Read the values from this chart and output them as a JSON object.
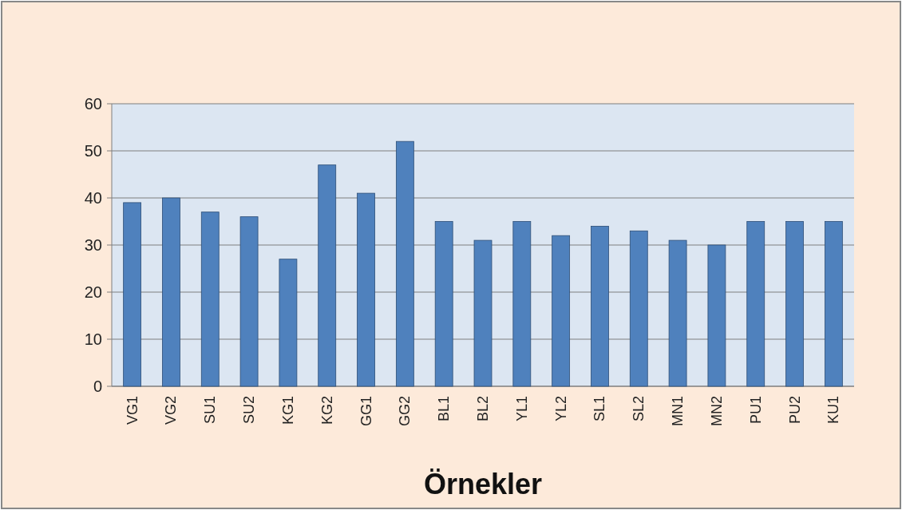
{
  "chart_data": {
    "type": "bar",
    "xlabel": "Örnekler",
    "categories": [
      "VG1",
      "VG2",
      "SU1",
      "SU2",
      "KG1",
      "KG2",
      "GG1",
      "GG2",
      "BL1",
      "BL2",
      "YL1",
      "YL2",
      "SL1",
      "SL2",
      "MN1",
      "MN2",
      "PU1",
      "PU2",
      "KU1"
    ],
    "values": [
      39,
      40,
      37,
      36,
      27,
      47,
      41,
      52,
      35,
      31,
      35,
      32,
      34,
      33,
      31,
      30,
      35,
      35,
      35
    ],
    "color": "#4f81bd",
    "ylim": [
      0,
      60
    ],
    "yticks": [
      0,
      10,
      20,
      30,
      40,
      50,
      60
    ],
    "grid": "y"
  }
}
